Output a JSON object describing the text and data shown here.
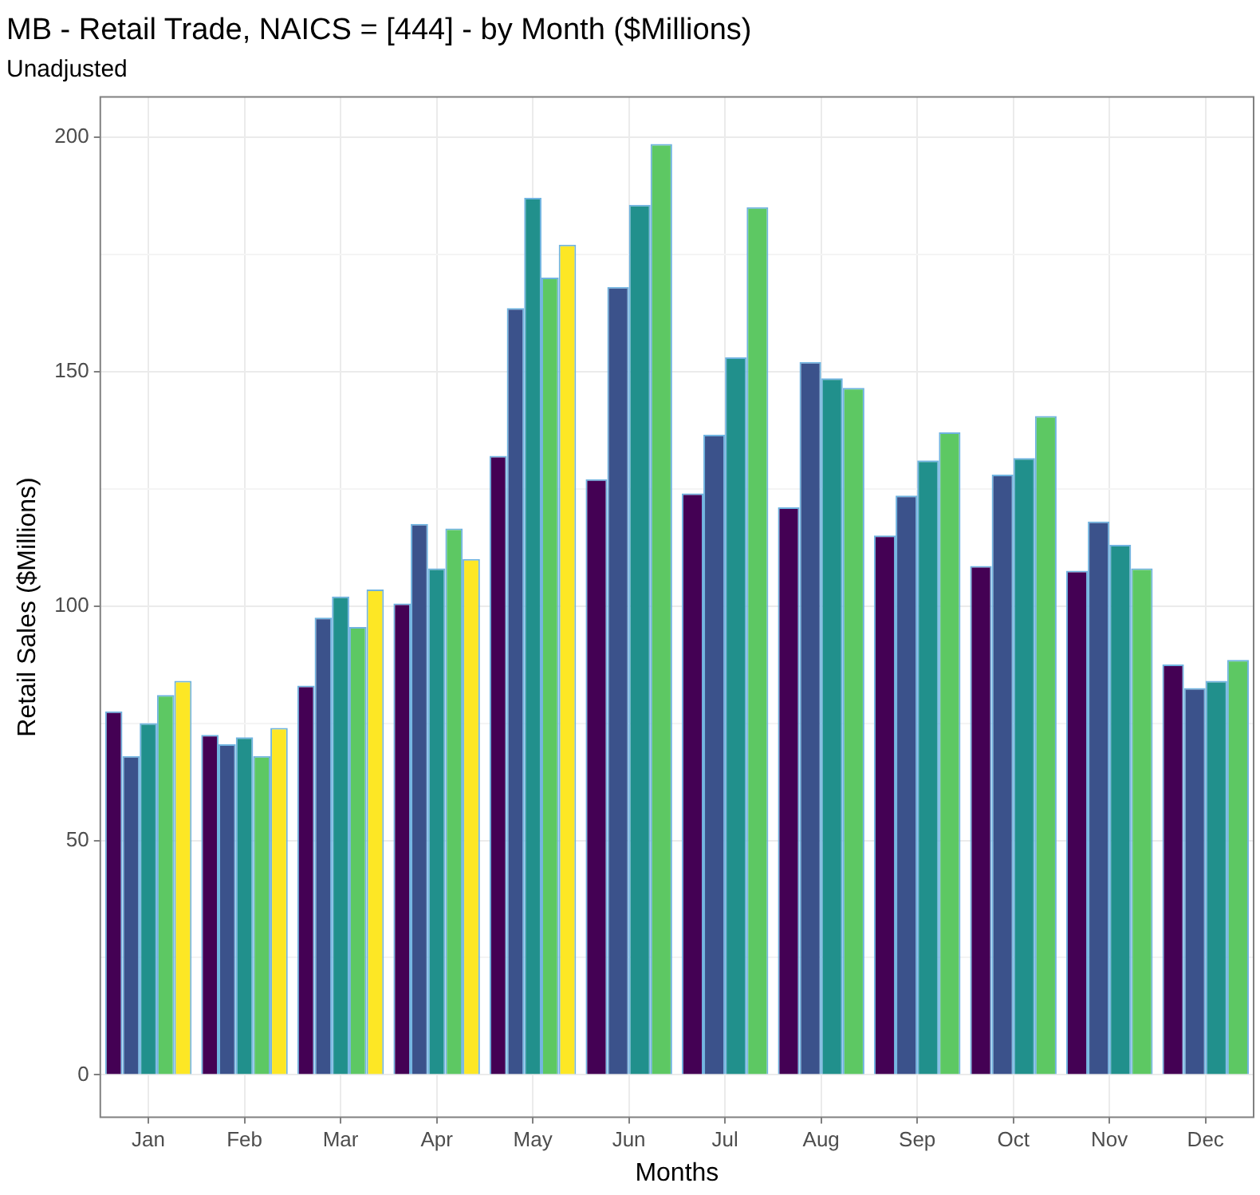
{
  "chart_data": {
    "type": "bar",
    "title": "MB - Retail Trade, NAICS = [444] - by Month ($Millions)",
    "subtitle": "Unadjusted",
    "xlabel": "Months",
    "ylabel": "Retail Sales ($Millions)",
    "categories": [
      "Jan",
      "Feb",
      "Mar",
      "Apr",
      "May",
      "Jun",
      "Jul",
      "Aug",
      "Sep",
      "Oct",
      "Nov",
      "Dec"
    ],
    "series": [
      {
        "color": "#440154",
        "values": [
          77.5,
          72.5,
          83,
          100.5,
          132,
          127,
          124,
          121,
          115,
          108.5,
          107.5,
          87.5
        ]
      },
      {
        "color": "#3b528b",
        "values": [
          68,
          70.5,
          97.5,
          117.5,
          163.5,
          168,
          136.5,
          152,
          123.5,
          128,
          118,
          82.5
        ]
      },
      {
        "color": "#21908c",
        "values": [
          75,
          72,
          102,
          108,
          187,
          185.5,
          153,
          148.5,
          131,
          131.5,
          113,
          84
        ]
      },
      {
        "color": "#5dc863",
        "values": [
          81,
          68,
          95.5,
          116.5,
          170,
          198.5,
          185,
          146.5,
          137,
          140.5,
          108,
          88.5
        ]
      },
      {
        "color": "#fde725",
        "values": [
          84,
          74,
          103.5,
          110,
          177,
          null,
          null,
          null,
          null,
          null,
          null,
          null
        ]
      }
    ],
    "ylim": [
      -9,
      208.5
    ],
    "yticks": [
      0,
      {
        "value": 25,
        "label": null
      },
      50,
      {
        "value": 75,
        "label": null
      },
      100,
      {
        "value": 125,
        "label": null
      },
      150,
      {
        "value": 175,
        "label": null
      },
      200
    ],
    "grid": true
  }
}
